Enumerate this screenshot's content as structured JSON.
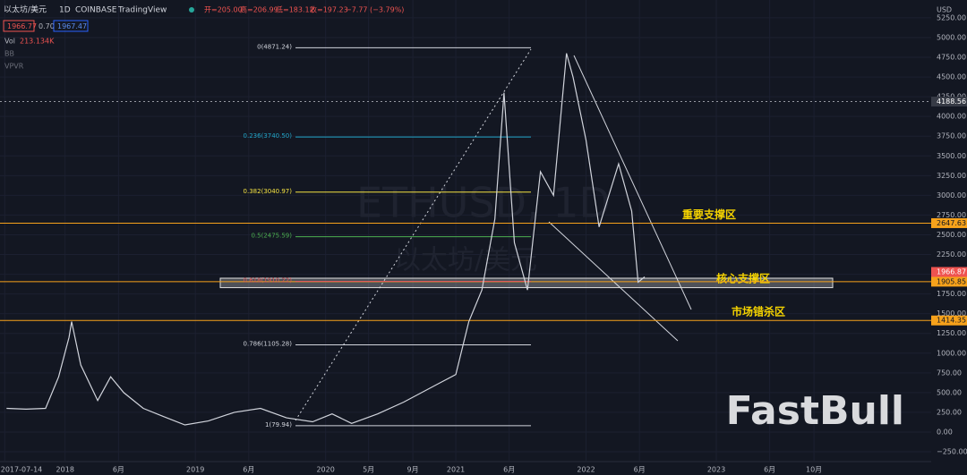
{
  "header": {
    "symbol": "以太坊/美元",
    "interval": "1D",
    "exchange": "COINBASE",
    "source": "TradingView",
    "ohlc": [
      "开=205.00",
      "高=206.99",
      "低=183.12",
      "收=197.23",
      "−7.77 (−3.79%)"
    ],
    "bid": "1966.77",
    "spread": "0.70",
    "ask": "1967.47",
    "indicators": [
      "Vol",
      "BB",
      "VPVR"
    ],
    "volume_value": "213.134K",
    "currency": "USD",
    "watermark": "ETHUSD, 1D",
    "watermark_sub": "以太坊/美元",
    "brand": "FastBull"
  },
  "chart_data": {
    "type": "line",
    "x": [
      2017.55,
      2017.7,
      2017.85,
      2017.95,
      2018.03,
      2018.05,
      2018.12,
      2018.25,
      2018.35,
      2018.45,
      2018.6,
      2018.75,
      2018.92,
      2019.1,
      2019.3,
      2019.5,
      2019.7,
      2019.9,
      2020.05,
      2020.2,
      2020.4,
      2020.6,
      2020.85,
      2021.0,
      2021.1,
      2021.2,
      2021.3,
      2021.37,
      2021.45,
      2021.55,
      2021.65,
      2021.75,
      2021.85,
      2021.9,
      2022.0,
      2022.1,
      2022.25,
      2022.35,
      2022.4,
      2022.45
    ],
    "series": [
      {
        "color": "#d1d4dc",
        "values": [
          300,
          290,
          300,
          700,
          1200,
          1400,
          850,
          400,
          700,
          500,
          300,
          200,
          90,
          140,
          250,
          300,
          180,
          130,
          230,
          110,
          230,
          380,
          600,
          730,
          1400,
          1800,
          2700,
          4300,
          2400,
          1800,
          3300,
          3000,
          4800,
          4500,
          3700,
          2600,
          3400,
          2800,
          1900,
          1966.87
        ]
      }
    ],
    "xlim": [
      2017.5,
      2024.65
    ],
    "ylim": [
      -363,
      5476
    ],
    "xticks": [
      {
        "value": 2017.536,
        "label": "2017-07-14"
      },
      2018,
      {
        "value": 2018.41,
        "label": "6月"
      },
      2019,
      {
        "value": 2019.41,
        "label": "6月"
      },
      2020,
      {
        "value": 2020.33,
        "label": "5月"
      },
      {
        "value": 2020.67,
        "label": "9月"
      },
      2021,
      {
        "value": 2021.41,
        "label": "6月"
      },
      2022,
      {
        "value": 2022.41,
        "label": "6月"
      },
      2023,
      {
        "value": 2023.41,
        "label": "6月"
      },
      {
        "value": 2023.75,
        "label": "10月"
      }
    ],
    "yticks": [
      {
        "value": 5250,
        "label": "5250.00"
      },
      {
        "value": 5000,
        "label": "5000.00"
      },
      {
        "value": 4750,
        "label": "4750.00"
      },
      {
        "value": 4500,
        "label": "4500.00"
      },
      {
        "value": 4250,
        "label": "4250.00"
      },
      {
        "value": 4000,
        "label": "4000.00"
      },
      {
        "value": 3750,
        "label": "3750.00"
      },
      {
        "value": 3500,
        "label": "3500.00"
      },
      {
        "value": 3250,
        "label": "3250.00"
      },
      {
        "value": 3000,
        "label": "3000.00"
      },
      {
        "value": 2750,
        "label": "2750.00"
      },
      {
        "value": 2500,
        "label": "2500.00"
      },
      {
        "value": 2250,
        "label": "2250.00"
      },
      {
        "value": 2000,
        "label": "2000.00"
      },
      {
        "value": 1750,
        "label": "1750.00"
      },
      {
        "value": 1500,
        "label": "1500.00"
      },
      {
        "value": 1250,
        "label": "1250.00"
      },
      {
        "value": 1000,
        "label": "1000.00"
      },
      {
        "value": 750,
        "label": "750.00"
      },
      {
        "value": 500,
        "label": "500.00"
      },
      {
        "value": 250,
        "label": "250.00"
      },
      {
        "value": 0,
        "label": "0.00"
      },
      {
        "value": -250,
        "label": "−250.00"
      }
    ],
    "grid": true,
    "fib_levels": [
      {
        "label": "0(4871.24)",
        "value": 4871.24,
        "color": "#d1d4dc"
      },
      {
        "label": "0.236(3740.50)",
        "value": 3740.5,
        "color": "#22a6c9"
      },
      {
        "label": "0.382(3040.97)",
        "value": 3040.97,
        "color": "#f5e342"
      },
      {
        "label": "0.5(2475.59)",
        "value": 2475.59,
        "color": "#4caf50"
      },
      {
        "label": "0.618(1910.22)",
        "value": 1910.22,
        "color": "#e05a5a"
      },
      {
        "label": "0.786(1105.28)",
        "value": 1105.28,
        "color": "#d1d4dc"
      },
      {
        "label": "1(79.94)",
        "value": 79.94,
        "color": "#d1d4dc"
      }
    ],
    "levels": [
      {
        "value": 2647.63,
        "color": "#f7a21b",
        "annotation": "重要支撑区"
      },
      {
        "value": 1905.85,
        "color": "#f7a21b"
      },
      {
        "value": 1414.35,
        "color": "#f7a21b",
        "annotation": "市场错杀区"
      }
    ],
    "zone": {
      "from": 1830,
      "to": 1950,
      "annotation": "核心支撑区"
    },
    "crosshair": 4188.56,
    "last_price": 1966.87
  }
}
